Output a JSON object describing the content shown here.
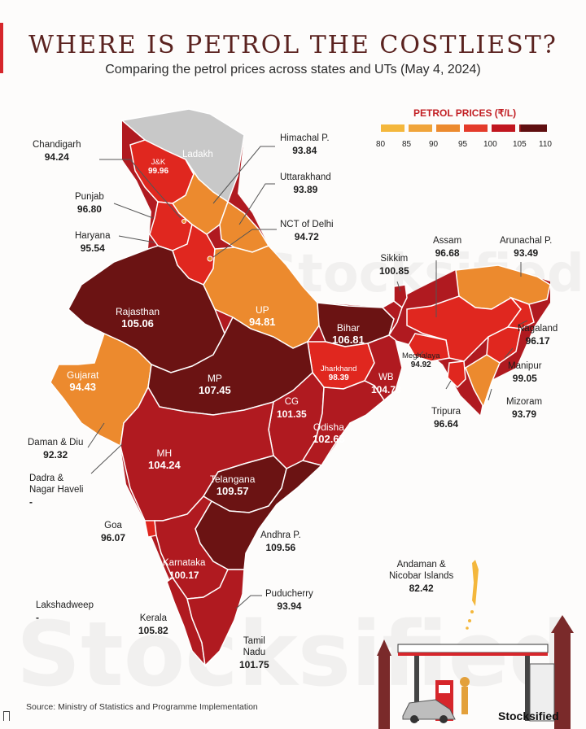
{
  "title": "WHERE IS PETROL THE COSTLIEST?",
  "subtitle": "Comparing the petrol prices across states and UTs (May 4, 2024)",
  "legend": {
    "title": "PETROL PRICES (₹/L)",
    "ticks": [
      "80",
      "85",
      "90",
      "95",
      "100",
      "105",
      "110"
    ],
    "colors": [
      "#f4b73c",
      "#f0a43a",
      "#ec8a2e",
      "#e43b2b",
      "#c1161f",
      "#8e1517",
      "#5f0f10"
    ]
  },
  "regions": {
    "ladakh": {
      "name": "Ladakh",
      "value": ""
    },
    "jk": {
      "name": "J&K",
      "value": "99.96"
    },
    "chandigarh": {
      "name": "Chandigarh",
      "value": "94.24"
    },
    "himachal": {
      "name": "Himachal P.",
      "value": "93.84"
    },
    "punjab": {
      "name": "Punjab",
      "value": "96.80"
    },
    "uttarakhand": {
      "name": "Uttarakhand",
      "value": "93.89"
    },
    "haryana": {
      "name": "Haryana",
      "value": "95.54"
    },
    "delhi": {
      "name": "NCT of Delhi",
      "value": "94.72"
    },
    "rajasthan": {
      "name": "Rajasthan",
      "value": "105.06"
    },
    "up": {
      "name": "UP",
      "value": "94.81"
    },
    "sikkim": {
      "name": "Sikkim",
      "value": "100.85"
    },
    "assam": {
      "name": "Assam",
      "value": "96.68"
    },
    "arunachal": {
      "name": "Arunachal P.",
      "value": "93.49"
    },
    "bihar": {
      "name": "Bihar",
      "value": "106.81"
    },
    "nagaland": {
      "name": "Nagaland",
      "value": "96.17"
    },
    "meghalaya": {
      "name": "Meghalaya",
      "value": "94.92"
    },
    "jharkhand": {
      "name": "Jharkhand",
      "value": "98.39"
    },
    "wb": {
      "name": "WB",
      "value": "104.73"
    },
    "manipur": {
      "name": "Manipur",
      "value": "99.05"
    },
    "gujarat": {
      "name": "Gujarat",
      "value": "94.43"
    },
    "mp": {
      "name": "MP",
      "value": "107.45"
    },
    "cg": {
      "name": "CG",
      "value": "101.35"
    },
    "tripura": {
      "name": "Tripura",
      "value": "96.64"
    },
    "mizoram": {
      "name": "Mizoram",
      "value": "93.79"
    },
    "odisha": {
      "name": "Odisha",
      "value": "102.65"
    },
    "daman": {
      "name": "Daman & Diu",
      "value": "92.32"
    },
    "mh": {
      "name": "MH",
      "value": "104.24"
    },
    "dadra": {
      "name": "Dadra &\nNagar Haveli",
      "value": "-"
    },
    "telangana": {
      "name": "Telangana",
      "value": "109.57"
    },
    "goa": {
      "name": "Goa",
      "value": "96.07"
    },
    "andhra": {
      "name": "Andhra P.",
      "value": "109.56"
    },
    "karnataka": {
      "name": "Karnataka",
      "value": "100.17"
    },
    "andaman": {
      "name": "Andaman &\nNicobar Islands",
      "value": "82.42"
    },
    "puducherry": {
      "name": "Puducherry",
      "value": "93.94"
    },
    "lakshadweep": {
      "name": "Lakshadweep",
      "value": "-"
    },
    "kerala": {
      "name": "Kerala",
      "value": "105.82"
    },
    "tn": {
      "name": "Tamil\nNadu",
      "value": "101.75"
    }
  },
  "colors": {
    "no_data": "#c8c8c8",
    "border": "#ffffff",
    "leader_line": "#555555",
    "title": "#5b2320",
    "accent": "#d6262b"
  },
  "watermark": "Stocksified",
  "source": "Source: Ministry of Statistics and Programme Implementation",
  "brand": "Stocksified"
}
